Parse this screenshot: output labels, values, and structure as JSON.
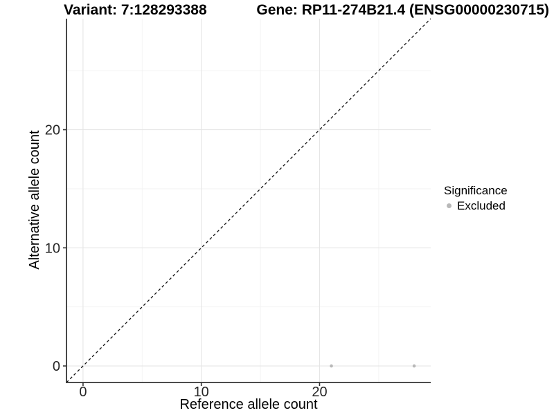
{
  "legend": {
    "title": "Significance",
    "items": [
      {
        "label": "Excluded",
        "color": "#b8b8b8"
      }
    ]
  },
  "chart_data": {
    "type": "scatter",
    "title_left": "Variant: 7:128293388",
    "title_right": "Gene: RP11-274B21.4 (ENSG00000230715)",
    "xlabel": "Reference allele count",
    "ylabel": "Alternative allele count",
    "xlim": [
      -1.4,
      29.4
    ],
    "ylim": [
      -1.4,
      29.4
    ],
    "x_major_ticks": [
      0,
      10,
      20
    ],
    "x_minor_ticks": [
      5,
      15,
      25
    ],
    "y_major_ticks": [
      0,
      10,
      20
    ],
    "y_minor_ticks": [
      5,
      15,
      25
    ],
    "grid": "major+minor",
    "legend_position": "right",
    "series": [
      {
        "name": "Excluded",
        "color": "#b8b8b8",
        "points": [
          [
            21,
            0
          ],
          [
            28,
            0
          ]
        ]
      }
    ],
    "reference_line": {
      "slope": 1,
      "intercept": 0,
      "style": "dashed",
      "color": "#111111"
    },
    "colors": {
      "major_grid": "#e5e5e5",
      "minor_grid": "#f2f2f2",
      "axis": "#333333",
      "tick_text": "#262626"
    }
  }
}
